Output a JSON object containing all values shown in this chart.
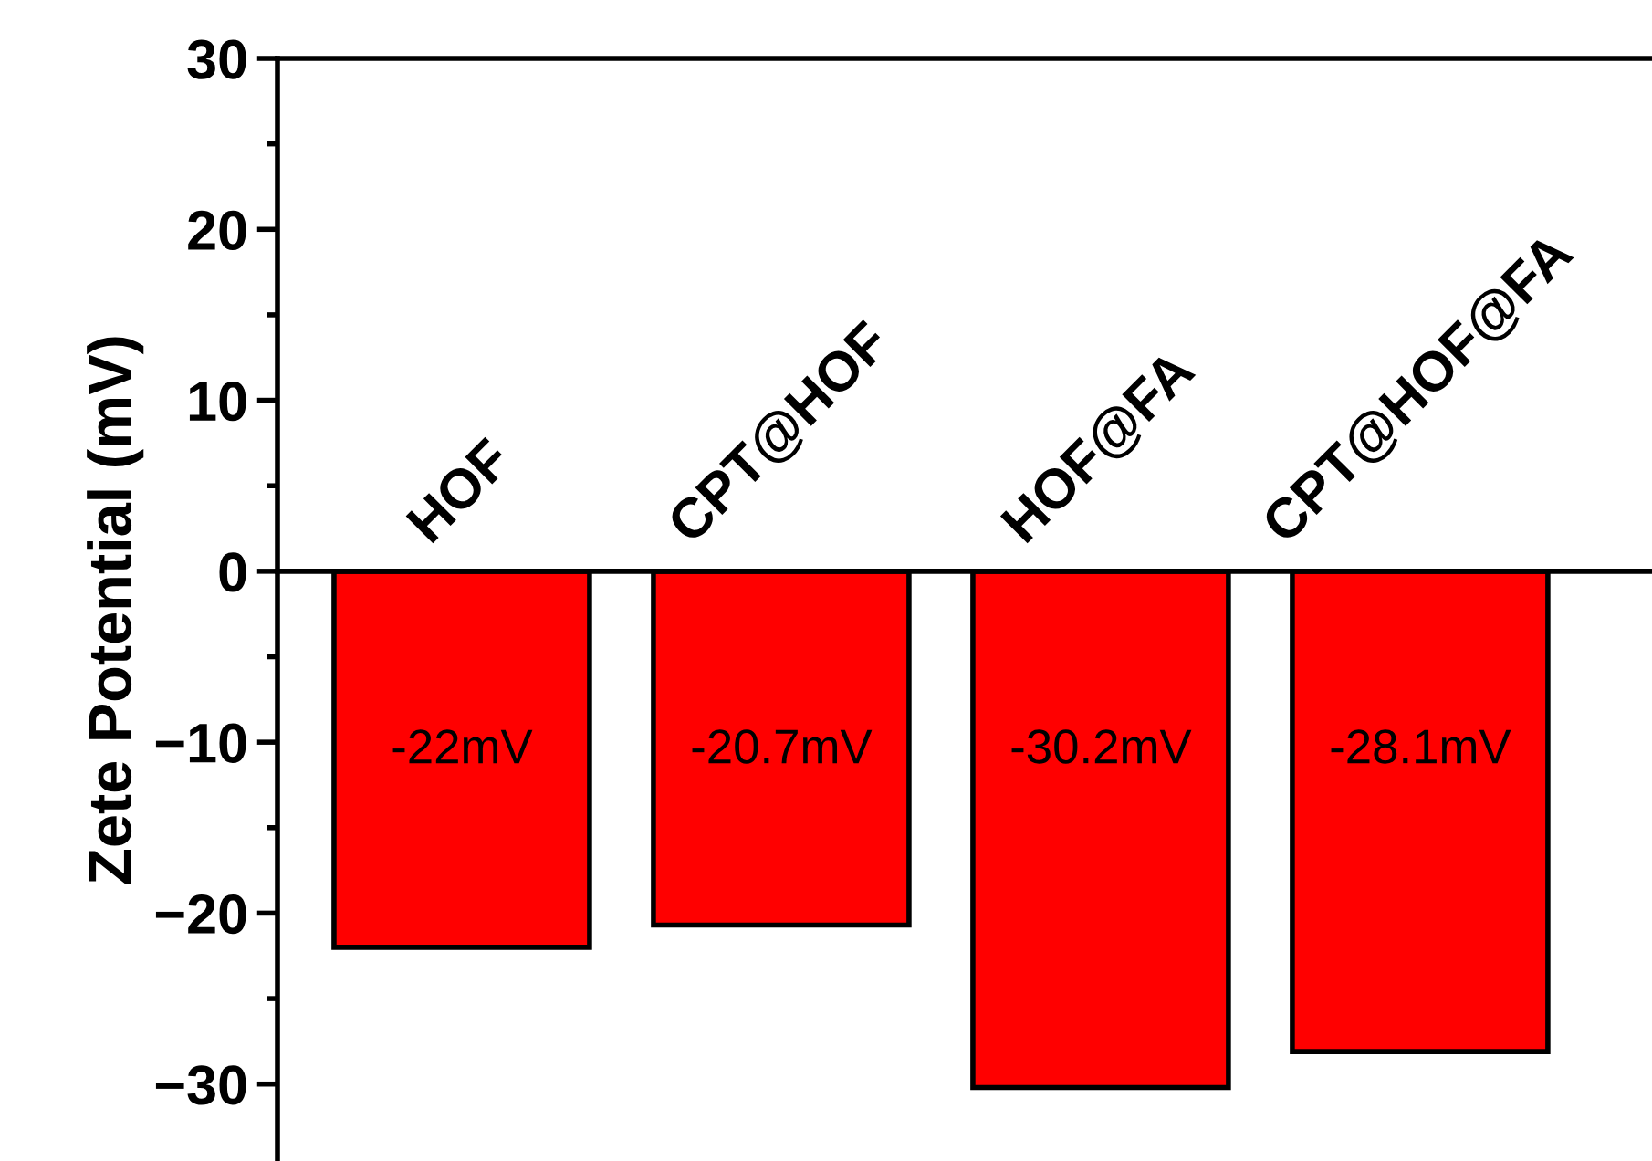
{
  "chart_data": {
    "type": "bar",
    "ylabel": "Zete Potential (mV)",
    "categories": [
      "HOF",
      "CPT@HOF",
      "HOF@FA",
      "CPT@HOF@FA"
    ],
    "values": [
      -22,
      -20.7,
      -30.2,
      -28.1
    ],
    "value_labels": [
      "-22mV",
      "-20.7mV",
      "-30.2mV",
      "-28.1mV"
    ],
    "color": "#ff0000",
    "ylim": [
      -34.5,
      30
    ],
    "yticks": [
      -30,
      -20,
      -10,
      0,
      10,
      20,
      30
    ],
    "grid": false,
    "legend": false
  }
}
